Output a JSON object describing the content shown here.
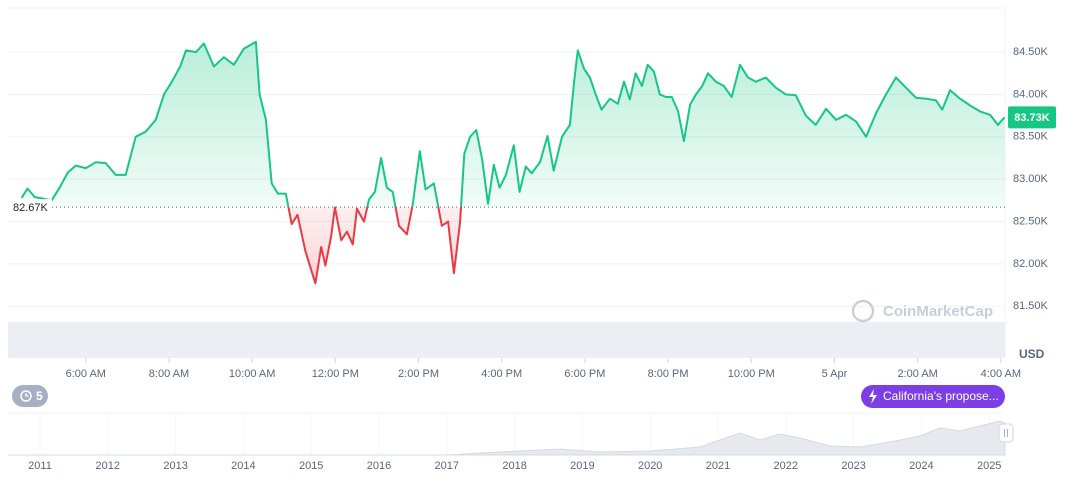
{
  "chart_data": {
    "type": "line",
    "x": [
      4.46,
      4.6,
      4.77,
      5.18,
      5.37,
      5.57,
      5.76,
      6.0,
      6.24,
      6.48,
      6.72,
      6.96,
      7.2,
      7.44,
      7.68,
      7.88,
      8.07,
      8.27,
      8.41,
      8.65,
      8.84,
      9.08,
      9.32,
      9.56,
      9.8,
      10.09,
      10.18,
      10.33,
      10.47,
      10.62,
      10.81,
      10.95,
      11.09,
      11.28,
      11.52,
      11.66,
      11.76,
      11.9,
      11.99,
      12.14,
      12.28,
      12.42,
      12.52,
      12.69,
      12.81,
      12.95,
      13.1,
      13.24,
      13.38,
      13.53,
      13.72,
      13.86,
      14.03,
      14.17,
      14.37,
      14.56,
      14.71,
      14.85,
      15.0,
      15.1,
      15.24,
      15.39,
      15.53,
      15.67,
      15.81,
      15.95,
      16.1,
      16.29,
      16.43,
      16.58,
      16.72,
      16.92,
      17.1,
      17.25,
      17.45,
      17.64,
      17.74,
      17.83,
      17.98,
      18.12,
      18.26,
      18.4,
      18.6,
      18.79,
      18.94,
      19.08,
      19.22,
      19.37,
      19.51,
      19.66,
      19.8,
      19.95,
      20.09,
      20.24,
      20.38,
      20.53,
      20.67,
      20.82,
      20.96,
      21.15,
      21.34,
      21.53,
      21.73,
      21.92,
      22.11,
      22.35,
      22.59,
      22.83,
      23.07,
      23.31,
      23.55,
      23.8,
      24.04,
      24.28,
      24.52,
      24.76,
      25.0,
      25.24,
      25.48,
      25.72,
      25.96,
      26.2,
      26.44,
      26.59,
      26.78,
      27.02,
      27.26,
      27.5,
      27.74,
      27.93,
      28.09
    ],
    "values": [
      82780,
      82890,
      82790,
      82750,
      82900,
      83080,
      83160,
      83130,
      83200,
      83190,
      83050,
      83050,
      83500,
      83560,
      83700,
      84000,
      84150,
      84330,
      84520,
      84500,
      84600,
      84330,
      84440,
      84350,
      84540,
      84620,
      84000,
      83700,
      82950,
      82830,
      82830,
      82470,
      82580,
      82150,
      81770,
      82200,
      81980,
      82330,
      82670,
      82280,
      82380,
      82230,
      82650,
      82500,
      82760,
      82850,
      83250,
      82900,
      82850,
      82450,
      82350,
      82700,
      83330,
      82880,
      82950,
      82450,
      82500,
      81890,
      82500,
      83300,
      83500,
      83580,
      83230,
      82710,
      83170,
      82900,
      83050,
      83400,
      82850,
      83150,
      83070,
      83200,
      83510,
      83100,
      83500,
      83640,
      84150,
      84520,
      84300,
      84200,
      84000,
      83820,
      83950,
      83890,
      84150,
      83940,
      84250,
      84100,
      84350,
      84270,
      84000,
      83970,
      83970,
      83800,
      83450,
      83880,
      84000,
      84100,
      84250,
      84150,
      84100,
      83970,
      84350,
      84200,
      84150,
      84200,
      84080,
      84000,
      83990,
      83750,
      83640,
      83830,
      83700,
      83760,
      83680,
      83500,
      83780,
      84000,
      84200,
      84080,
      83960,
      83950,
      83930,
      83820,
      84050,
      83950,
      83870,
      83800,
      83760,
      83640,
      83730
    ],
    "colors": {
      "up": "#16c784",
      "down": "#ea3943"
    },
    "xlim": [
      4.13,
      28.1
    ],
    "xticks": [
      {
        "value": 6,
        "label": "6:00 AM"
      },
      {
        "value": 8,
        "label": "8:00 AM"
      },
      {
        "value": 10,
        "label": "10:00 AM"
      },
      {
        "value": 12,
        "label": "12:00 PM"
      },
      {
        "value": 14,
        "label": "2:00 PM"
      },
      {
        "value": 16,
        "label": "4:00 PM"
      },
      {
        "value": 18,
        "label": "6:00 PM"
      },
      {
        "value": 20,
        "label": "8:00 PM"
      },
      {
        "value": 22,
        "label": "10:00 PM"
      },
      {
        "value": 24,
        "label": "5 Apr"
      },
      {
        "value": 26,
        "label": "2:00 AM"
      },
      {
        "value": 28,
        "label": "4:00 AM"
      }
    ],
    "ylim": [
      80890,
      85020
    ],
    "yticks": [
      {
        "value": 81500,
        "label": "81.50K"
      },
      {
        "value": 82000,
        "label": "82.00K"
      },
      {
        "value": 82500,
        "label": "82.50K"
      },
      {
        "value": 83000,
        "label": "83.00K"
      },
      {
        "value": 83500,
        "label": "83.50K"
      },
      {
        "value": 84000,
        "label": "84.00K"
      },
      {
        "value": 84500,
        "label": "84.50K"
      }
    ],
    "grid": true,
    "baseline": {
      "value": 82670,
      "label": "82.67K"
    },
    "last": {
      "value": 83730,
      "label": "83.73K"
    },
    "y_unit": "USD",
    "watermark": "CoinMarketCap",
    "events_badge": "5",
    "news_badge": "California's propose...",
    "navigator_years": [
      "2011",
      "2012",
      "2013",
      "2014",
      "2015",
      "2016",
      "2017",
      "2018",
      "2019",
      "2020",
      "2021",
      "2022",
      "2023",
      "2024",
      "2025"
    ]
  }
}
